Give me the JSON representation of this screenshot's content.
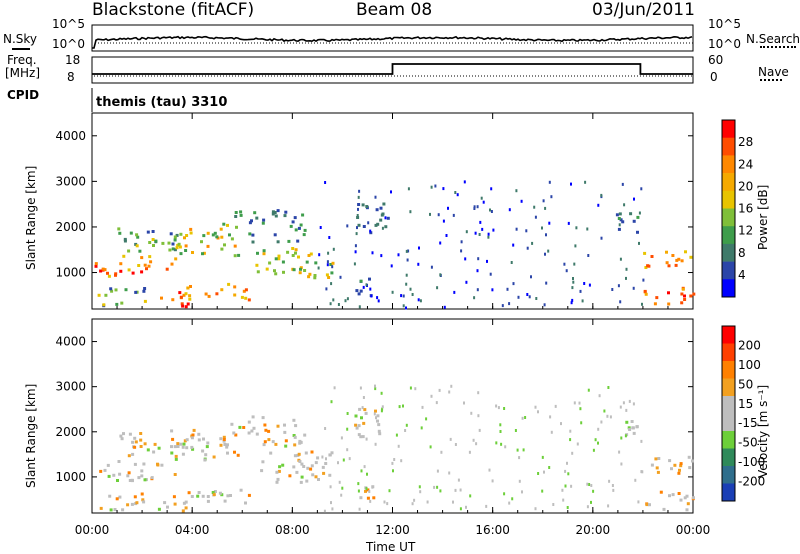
{
  "header": {
    "title": "Blackstone (fitACF)",
    "beam": "Beam 08",
    "date": "03/Jun/2011"
  },
  "sky_panel": {
    "left_label": "N.Sky",
    "right_label": "N.Search",
    "left_ticks": [
      "10^5",
      "10^0"
    ],
    "right_ticks": [
      "10^5",
      "10^0"
    ]
  },
  "freq_panel": {
    "left_label_line1": "Freq.",
    "left_label_line2": "[MHz]",
    "right_label": "Nave",
    "left_ticks": [
      "18",
      "8"
    ],
    "right_ticks": [
      "60",
      "0"
    ]
  },
  "cpid_panel": {
    "left_label": "CPID",
    "text": "themis (tau) 3310"
  },
  "chart_data": [
    {
      "type": "heatmap",
      "name": "Power",
      "ylabel": "Slant Range [km]",
      "xlabel": "Time UT",
      "ylim": [
        200,
        4500
      ],
      "y_ticks": [
        "1000",
        "2000",
        "3000",
        "4000"
      ],
      "x_ticks": [
        "00:00",
        "04:00",
        "08:00",
        "12:00",
        "16:00",
        "20:00",
        "00:00"
      ],
      "colorbar": {
        "label": "Power [dB]",
        "tick_labels": [
          "4",
          "8",
          "12",
          "16",
          "20",
          "24",
          "28"
        ],
        "colors": [
          "#0000ff",
          "#2b45a8",
          "#3f7a6a",
          "#3e9d4b",
          "#7fbf39",
          "#e8c400",
          "#f5a900",
          "#ff8800",
          "#ff4d00",
          "#ff0000"
        ]
      }
    },
    {
      "type": "heatmap",
      "name": "Velocity",
      "ylabel": "Slant Range [km]",
      "xlabel": "Time UT",
      "ylim": [
        200,
        4500
      ],
      "y_ticks": [
        "1000",
        "2000",
        "3000",
        "4000"
      ],
      "x_ticks": [
        "00:00",
        "04:00",
        "08:00",
        "12:00",
        "16:00",
        "20:00",
        "00:00"
      ],
      "colorbar": {
        "label": "Velocity [m s⁻¹]",
        "tick_labels": [
          "200",
          "100",
          "50",
          "15",
          "-15",
          "-50",
          "-100",
          "-200"
        ],
        "colors": [
          "#1a3fb5",
          "#2f6e8c",
          "#2f8a5a",
          "#6dcf3a",
          "#bebebe",
          "#bebebe",
          "#f2a020",
          "#ff8000",
          "#ff4000",
          "#ff0000"
        ]
      }
    }
  ],
  "x_axis": {
    "label": "Time UT"
  }
}
